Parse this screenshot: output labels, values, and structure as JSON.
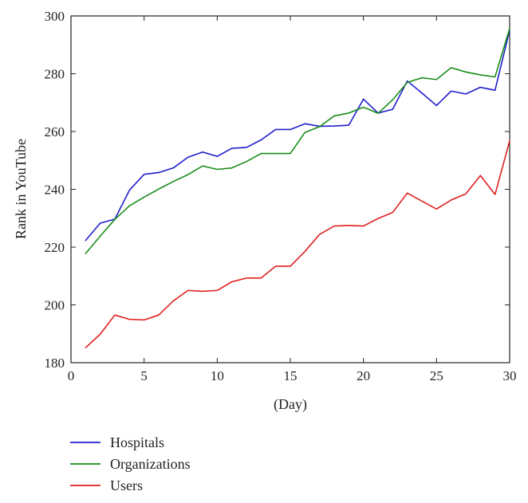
{
  "chart_data": {
    "type": "line",
    "title": "",
    "xlabel": "(Day)",
    "ylabel": "Rank in YouTube",
    "xlim": [
      0,
      30
    ],
    "ylim": [
      180,
      300
    ],
    "xticks": [
      0,
      5,
      10,
      15,
      20,
      25,
      30
    ],
    "yticks": [
      180,
      200,
      220,
      240,
      260,
      280,
      300
    ],
    "grid": false,
    "legend_position": "bottom-left, below plot",
    "x": [
      1,
      2,
      3,
      4,
      5,
      6,
      7,
      8,
      9,
      10,
      11,
      12,
      13,
      14,
      15,
      16,
      17,
      18,
      19,
      20,
      21,
      22,
      23,
      24,
      25,
      26,
      27,
      28,
      29,
      30
    ],
    "series": [
      {
        "name": "Hospitals",
        "color": "#1f1fcc",
        "values": [
          222.3,
          228.3,
          229.7,
          239.7,
          245.2,
          245.8,
          247.4,
          251.1,
          252.9,
          251.4,
          254.2,
          254.5,
          257.1,
          260.7,
          260.7,
          262.7,
          261.8,
          261.9,
          262.2,
          271.2,
          266.4,
          267.7,
          277.5,
          273.3,
          269.0,
          274.0,
          273.0,
          275.3,
          274.3,
          295.1
        ]
      },
      {
        "name": "Organizations",
        "color": "#1a8c1a",
        "values": [
          217.8,
          223.8,
          229.6,
          234.3,
          237.3,
          240.1,
          242.7,
          245.1,
          248.1,
          246.9,
          247.4,
          249.6,
          252.4,
          252.4,
          252.4,
          259.7,
          261.7,
          265.4,
          266.4,
          268.4,
          266.3,
          271.0,
          277.0,
          278.6,
          278.0,
          282.1,
          280.6,
          279.6,
          278.9,
          295.7
        ]
      },
      {
        "name": "Users",
        "color": "#e02020",
        "values": [
          185.2,
          189.9,
          196.5,
          195.0,
          194.8,
          196.5,
          201.4,
          205.0,
          204.7,
          205.0,
          208.0,
          209.3,
          209.3,
          213.4,
          213.4,
          218.5,
          224.4,
          227.3,
          227.5,
          227.3,
          229.9,
          232.0,
          238.7,
          235.9,
          233.2,
          236.3,
          238.4,
          244.8,
          238.2,
          256.8
        ]
      }
    ]
  }
}
